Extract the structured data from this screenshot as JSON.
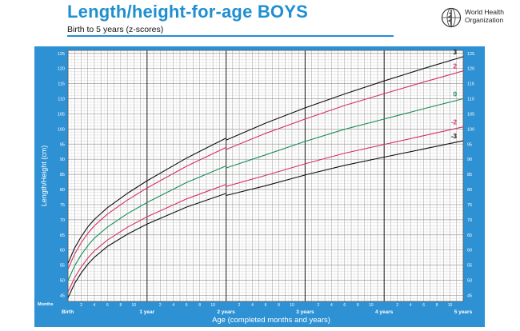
{
  "header": {
    "title": "Length/height-for-age BOYS",
    "subtitle": "Birth to 5 years (z-scores)",
    "org_line1": "World Health",
    "org_line2": "Organization"
  },
  "colors": {
    "panel_bg": "#2d91d4",
    "grid_bg": "#ffffff",
    "grid_minor": "#c6c6c6",
    "grid_major": "#2a2a2a",
    "title_blue": "#1f8fd0"
  },
  "chart_data": {
    "type": "line",
    "title": "Length/height-for-age BOYS",
    "subtitle": "Birth to 5 years (z-scores)",
    "xlabel": "Age (completed months and years)",
    "ylabel": "Length/Height (cm)",
    "xlim": [
      0,
      60
    ],
    "ylim": [
      43,
      126
    ],
    "y_ticks": [
      45,
      50,
      55,
      60,
      65,
      70,
      75,
      80,
      85,
      90,
      95,
      100,
      105,
      110,
      115,
      120,
      125
    ],
    "x_major_labels": [
      {
        "month": 0,
        "label": "Birth"
      },
      {
        "month": 12,
        "label": "1 year"
      },
      {
        "month": 24,
        "label": "2 years"
      },
      {
        "month": 36,
        "label": "3 years"
      },
      {
        "month": 48,
        "label": "4 years"
      },
      {
        "month": 60,
        "label": "5 years"
      }
    ],
    "x_minor_labels": [
      "2",
      "4",
      "6",
      "8",
      "10"
    ],
    "x_row_label": "Months",
    "grid": true,
    "break_month": 24,
    "x": [
      0,
      1,
      2,
      3,
      4,
      6,
      9,
      12,
      18,
      24,
      30,
      36,
      42,
      48,
      54,
      60
    ],
    "series": [
      {
        "name": "3",
        "color": "#111111",
        "values": [
          55.6,
          60.6,
          64.4,
          67.6,
          70.1,
          74.0,
          78.7,
          82.9,
          90.4,
          97.0,
          102.4,
          107.2,
          111.6,
          115.9,
          120.0,
          123.9
        ]
      },
      {
        "name": "2",
        "color": "#d63264",
        "values": [
          53.7,
          58.6,
          62.4,
          65.5,
          68.0,
          71.9,
          76.5,
          80.5,
          87.7,
          93.9,
          99.0,
          103.5,
          107.8,
          111.7,
          115.5,
          119.2
        ]
      },
      {
        "name": "0",
        "color": "#1a8c55",
        "values": [
          49.9,
          54.7,
          58.4,
          61.4,
          63.9,
          67.6,
          72.0,
          75.7,
          82.3,
          87.8,
          91.9,
          96.1,
          99.9,
          103.3,
          106.7,
          110.0
        ]
      },
      {
        "name": "-2",
        "color": "#d63264",
        "values": [
          46.1,
          50.8,
          54.4,
          57.3,
          59.7,
          63.3,
          67.5,
          71.0,
          76.9,
          81.7,
          85.1,
          88.7,
          92.0,
          94.9,
          97.8,
          100.7
        ]
      },
      {
        "name": "-3",
        "color": "#111111",
        "values": [
          44.2,
          48.9,
          52.4,
          55.3,
          57.6,
          61.2,
          65.2,
          68.6,
          74.2,
          78.7,
          81.7,
          85.0,
          88.0,
          90.7,
          93.4,
          96.1
        ]
      }
    ]
  }
}
